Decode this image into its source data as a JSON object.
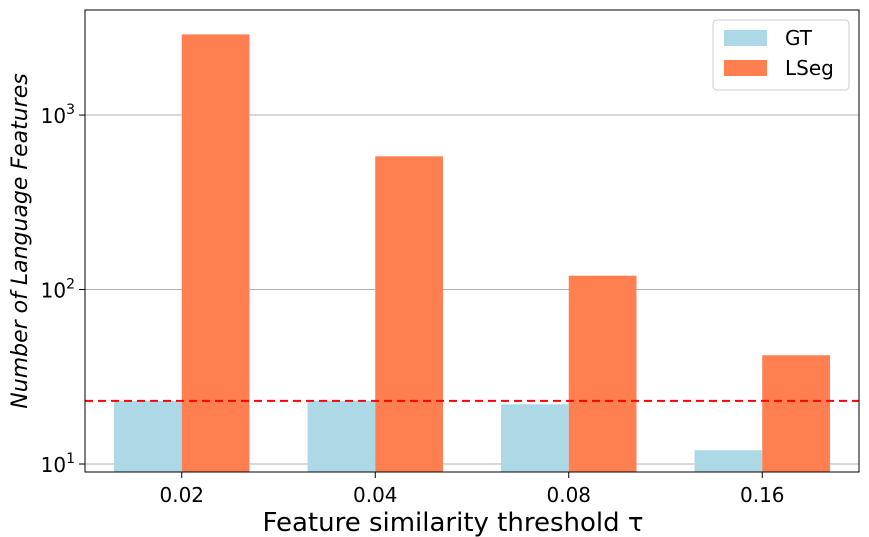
{
  "chart_data": {
    "type": "bar",
    "categories": [
      "0.02",
      "0.04",
      "0.08",
      "0.16"
    ],
    "series": [
      {
        "name": "GT",
        "values": [
          23,
          23,
          22,
          12
        ],
        "color": "#add8e6"
      },
      {
        "name": "LSeg",
        "values": [
          2900,
          580,
          120,
          42
        ],
        "color": "#ff7f50"
      }
    ],
    "reference_line": {
      "value": 23,
      "color": "#ff0000",
      "style": "dashed"
    },
    "xlabel": "Feature similarity threshold τ",
    "ylabel": "Number of Language Features",
    "yscale": "log",
    "ylim": [
      9,
      4000
    ],
    "yticks": [
      {
        "value": 10,
        "base": "10",
        "exp": "1"
      },
      {
        "value": 100,
        "base": "10",
        "exp": "2"
      },
      {
        "value": 1000,
        "base": "10",
        "exp": "3"
      }
    ],
    "grid": "y-major",
    "legend_position": "top-right"
  }
}
